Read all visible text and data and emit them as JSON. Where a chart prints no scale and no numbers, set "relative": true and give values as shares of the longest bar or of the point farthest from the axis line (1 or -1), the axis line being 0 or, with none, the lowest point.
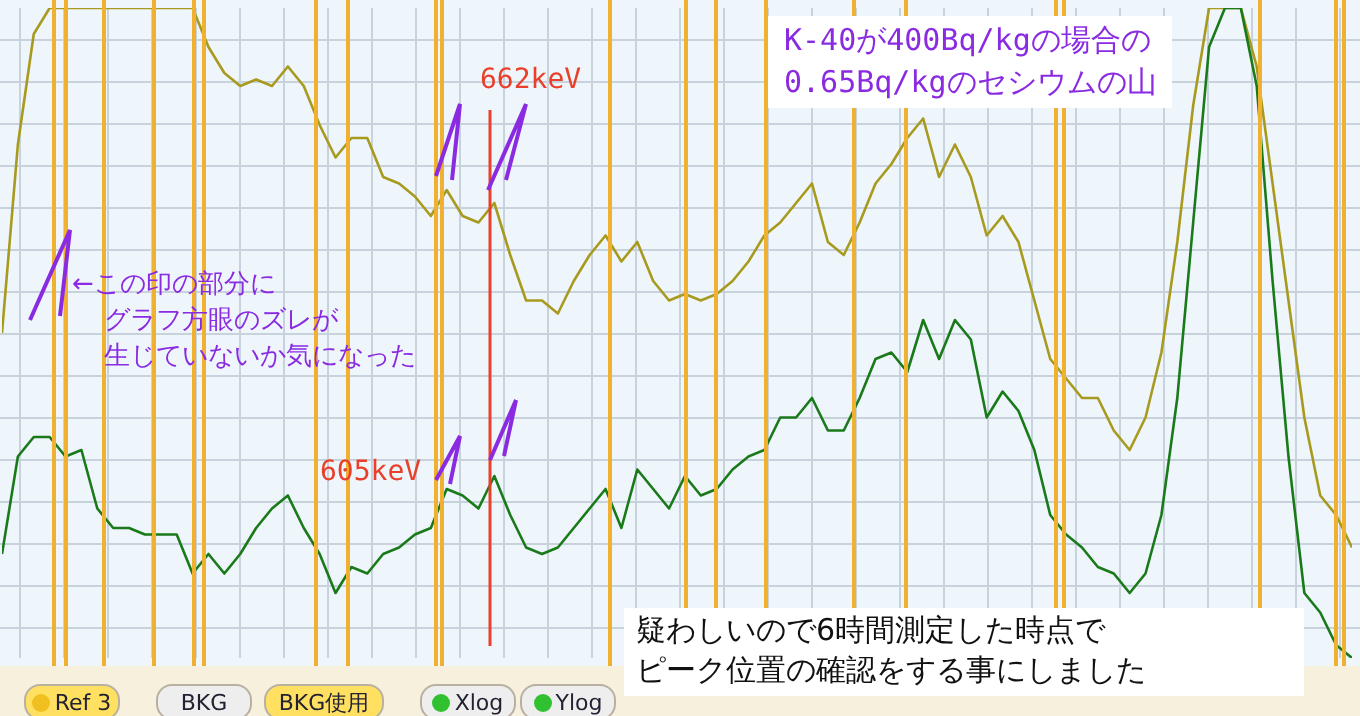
{
  "chart_data": {
    "type": "line",
    "relative": true,
    "grid": true,
    "marker": "none",
    "line_style": "solid",
    "title": "K-40が400Bq/kgの場合の\n0.65Bq/kgのセシウムの山",
    "categories": [
      null,
      null,
      null,
      null,
      null,
      null,
      null,
      null,
      null,
      null,
      null,
      null,
      null,
      null,
      null,
      null,
      null,
      null,
      null,
      null,
      null,
      null,
      null,
      null,
      null,
      null,
      null,
      null,
      null,
      null,
      null,
      null,
      null,
      null,
      null,
      null,
      null,
      null,
      null,
      null,
      null,
      null,
      null,
      null,
      null,
      null,
      null,
      null,
      null,
      null,
      null,
      null,
      null,
      null,
      null,
      null,
      null,
      null,
      null,
      null,
      null,
      null,
      null,
      null,
      null,
      null,
      null,
      null,
      null,
      null,
      null,
      null,
      null,
      null,
      null,
      null,
      null,
      null,
      null,
      null,
      null,
      null,
      null,
      null,
      null,
      null
    ],
    "series": [
      {
        "color": "#a89a1e",
        "values": [
          0.5,
          0.79,
          0.96,
          1,
          1,
          1,
          1,
          1,
          1,
          1,
          1,
          1,
          1,
          0.94,
          0.9,
          0.88,
          0.89,
          0.88,
          0.91,
          0.88,
          0.82,
          0.77,
          0.8,
          0.8,
          0.74,
          0.73,
          0.71,
          0.68,
          0.72,
          0.68,
          0.67,
          0.7,
          0.62,
          0.55,
          0.55,
          0.53,
          0.58,
          0.62,
          0.65,
          0.61,
          0.64,
          0.58,
          0.55,
          0.56,
          0.55,
          0.56,
          0.58,
          0.61,
          0.65,
          0.67,
          0.7,
          0.73,
          0.64,
          0.62,
          0.67,
          0.73,
          0.76,
          0.8,
          0.83,
          0.74,
          0.79,
          0.74,
          0.65,
          0.68,
          0.64,
          0.55,
          0.46,
          0.43,
          0.4,
          0.4,
          0.35,
          0.32,
          0.37,
          0.47,
          0.64,
          0.85,
          1,
          1,
          1,
          0.91,
          0.73,
          0.55,
          0.37,
          0.25,
          0.22,
          0.17
        ]
      },
      {
        "color": "#1a7a1a",
        "values": [
          0.16,
          0.31,
          0.34,
          0.34,
          0.31,
          0.32,
          0.23,
          0.2,
          0.2,
          0.19,
          0.19,
          0.19,
          0.13,
          0.16,
          0.13,
          0.16,
          0.2,
          0.23,
          0.25,
          0.2,
          0.16,
          0.1,
          0.14,
          0.13,
          0.16,
          0.17,
          0.19,
          0.2,
          0.26,
          0.25,
          0.23,
          0.28,
          0.22,
          0.17,
          0.16,
          0.17,
          0.2,
          0.23,
          0.26,
          0.2,
          0.29,
          0.26,
          0.23,
          0.28,
          0.25,
          0.26,
          0.29,
          0.31,
          0.32,
          0.37,
          0.37,
          0.4,
          0.35,
          0.35,
          0.4,
          0.46,
          0.47,
          0.44,
          0.52,
          0.46,
          0.52,
          0.49,
          0.37,
          0.41,
          0.38,
          0.32,
          0.22,
          0.19,
          0.17,
          0.14,
          0.13,
          0.1,
          0.13,
          0.22,
          0.4,
          0.67,
          0.94,
          1,
          1,
          0.88,
          0.58,
          0.31,
          0.1,
          0.07,
          0.02,
          0
        ]
      }
    ],
    "annotations": [
      "←この印の部分に",
      "グラフ方眼のズレが",
      "生じていないか気になった",
      "605keV",
      "662keV",
      "疑わしいので6時間測定した時点で",
      "ピーク位置の確認をする事にしました",
      "Ref 3",
      "BKG",
      "BKG使用",
      "Xlog",
      "Ylog"
    ]
  }
}
